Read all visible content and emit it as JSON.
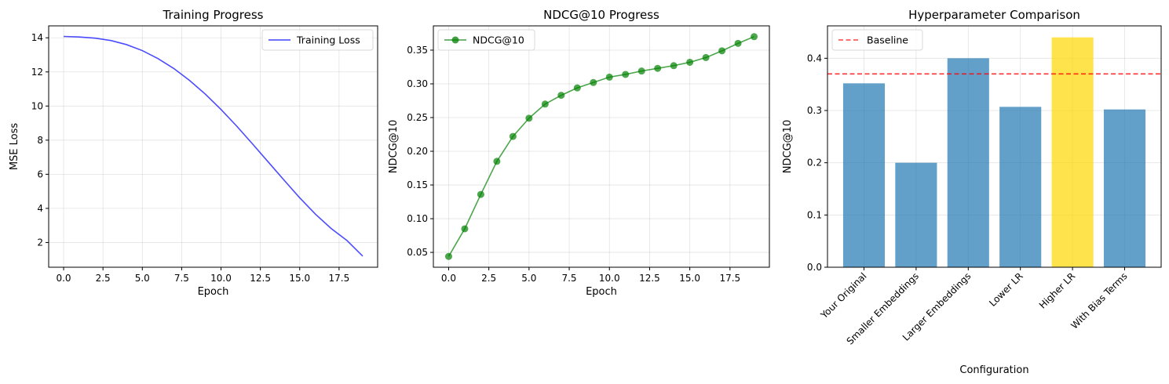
{
  "chart_data": [
    {
      "type": "line",
      "title": "Training Progress",
      "xlabel": "Epoch",
      "ylabel": "MSE Loss",
      "xlim": [
        -0.95,
        19.95
      ],
      "ylim": [
        0.55,
        14.7
      ],
      "xticks": [
        0,
        2.5,
        5,
        7.5,
        10,
        12.5,
        15,
        17.5
      ],
      "xtick_labels": [
        "0.0",
        "2.5",
        "5.0",
        "7.5",
        "10.0",
        "12.5",
        "15.0",
        "17.5"
      ],
      "yticks": [
        2,
        4,
        6,
        8,
        10,
        12,
        14
      ],
      "ytick_labels": [
        "2",
        "4",
        "6",
        "8",
        "10",
        "12",
        "14"
      ],
      "grid": true,
      "legend": "top-right",
      "series": [
        {
          "name": "Training Loss",
          "color": "#0000ff",
          "x": [
            0,
            1,
            2,
            3,
            4,
            5,
            6,
            7,
            8,
            9,
            10,
            11,
            12,
            13,
            14,
            15,
            16,
            17,
            18,
            19
          ],
          "y": [
            14.08,
            14.05,
            13.98,
            13.84,
            13.6,
            13.25,
            12.78,
            12.2,
            11.5,
            10.7,
            9.8,
            8.82,
            7.78,
            6.72,
            5.66,
            4.62,
            3.66,
            2.82,
            2.12,
            1.2
          ]
        }
      ]
    },
    {
      "type": "line",
      "title": "NDCG@10 Progress",
      "xlabel": "Epoch",
      "ylabel": "NDCG@10",
      "xlim": [
        -0.95,
        19.95
      ],
      "ylim": [
        0.028,
        0.386
      ],
      "xticks": [
        0,
        2.5,
        5,
        7.5,
        10,
        12.5,
        15,
        17.5
      ],
      "xtick_labels": [
        "0.0",
        "2.5",
        "5.0",
        "7.5",
        "10.0",
        "12.5",
        "15.0",
        "17.5"
      ],
      "yticks": [
        0.05,
        0.1,
        0.15,
        0.2,
        0.25,
        0.3,
        0.35
      ],
      "ytick_labels": [
        "0.05",
        "0.10",
        "0.15",
        "0.20",
        "0.25",
        "0.30",
        "0.35"
      ],
      "grid": true,
      "legend": "top-left",
      "series": [
        {
          "name": "NDCG@10",
          "color": "#008000",
          "marker": "circle",
          "x": [
            0,
            1,
            2,
            3,
            4,
            5,
            6,
            7,
            8,
            9,
            10,
            11,
            12,
            13,
            14,
            15,
            16,
            17,
            18,
            19
          ],
          "y": [
            0.044,
            0.085,
            0.136,
            0.185,
            0.222,
            0.249,
            0.27,
            0.283,
            0.294,
            0.302,
            0.31,
            0.314,
            0.319,
            0.323,
            0.327,
            0.332,
            0.339,
            0.349,
            0.36,
            0.37
          ]
        }
      ]
    },
    {
      "type": "bar",
      "title": "Hyperparameter Comparison",
      "xlabel": "Configuration",
      "ylabel": "NDCG@10",
      "ylim": [
        0,
        0.462
      ],
      "yticks": [
        0.0,
        0.1,
        0.2,
        0.3,
        0.4
      ],
      "ytick_labels": [
        "0.0",
        "0.1",
        "0.2",
        "0.3",
        "0.4"
      ],
      "grid": true,
      "legend": "top-left",
      "categories": [
        "Your Original",
        "Smaller Embeddings",
        "Larger Embeddings",
        "Lower LR",
        "Higher LR",
        "With Bias Terms"
      ],
      "values": [
        0.352,
        0.2,
        0.4,
        0.307,
        0.44,
        0.302
      ],
      "bar_colors": [
        "#1f77b4",
        "#1f77b4",
        "#1f77b4",
        "#1f77b4",
        "#ffd700",
        "#1f77b4"
      ],
      "baseline": {
        "name": "Baseline",
        "value": 0.37,
        "color": "#ff0000"
      }
    }
  ]
}
